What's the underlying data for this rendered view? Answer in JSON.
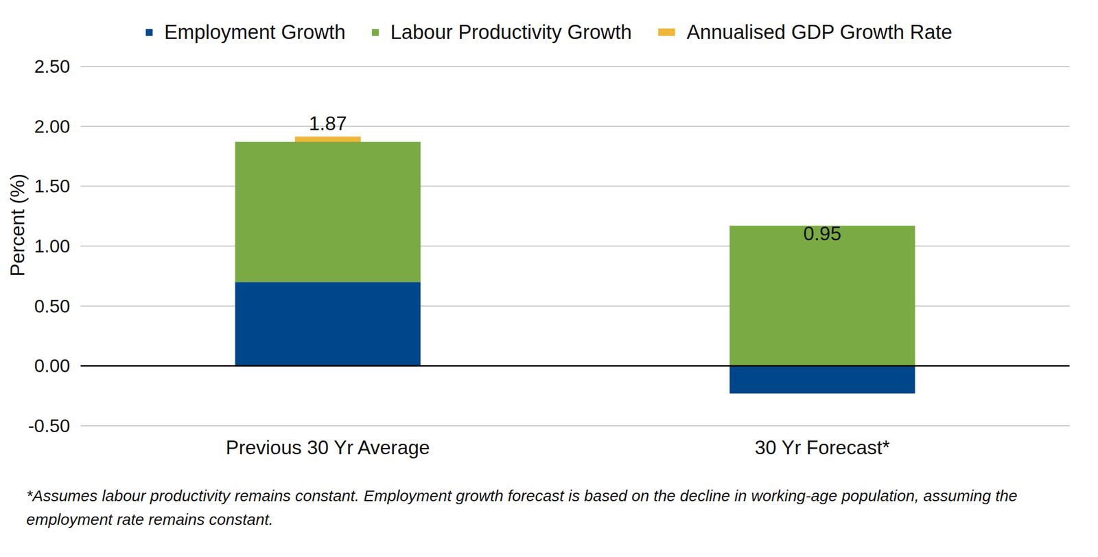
{
  "chart_data": {
    "type": "bar",
    "stacked": true,
    "categories": [
      "Previous 30 Yr Average",
      "30 Yr Forecast*"
    ],
    "series": [
      {
        "name": "Employment Growth",
        "color": "#00468b",
        "values": [
          0.7,
          -0.23
        ]
      },
      {
        "name": "Labour Productivity Growth",
        "color": "#7aaa43",
        "values": [
          1.17,
          1.17
        ]
      },
      {
        "name": "Annualised GDP Growth Rate",
        "color": "#f0b63a",
        "type": "marker",
        "marker": "dash",
        "data_labels": true,
        "values": [
          1.87,
          0.95
        ]
      }
    ],
    "y_label": "Percent (%)",
    "ylim": [
      -0.5,
      2.5
    ],
    "yticks": [
      {
        "value": -0.5,
        "label": "-0.50"
      },
      {
        "value": 0,
        "label": "0.00"
      },
      {
        "value": 0.5,
        "label": "0.50"
      },
      {
        "value": 1,
        "label": "1.00"
      },
      {
        "value": 1.5,
        "label": "1.50"
      },
      {
        "value": 2,
        "label": "2.00"
      },
      {
        "value": 2.5,
        "label": "2.50"
      }
    ],
    "grid": true,
    "legend": "top",
    "footnote": "*Assumes labour productivity remains constant. Employment growth forecast is based on the decline in working-age population, assuming the employment rate remains constant."
  }
}
